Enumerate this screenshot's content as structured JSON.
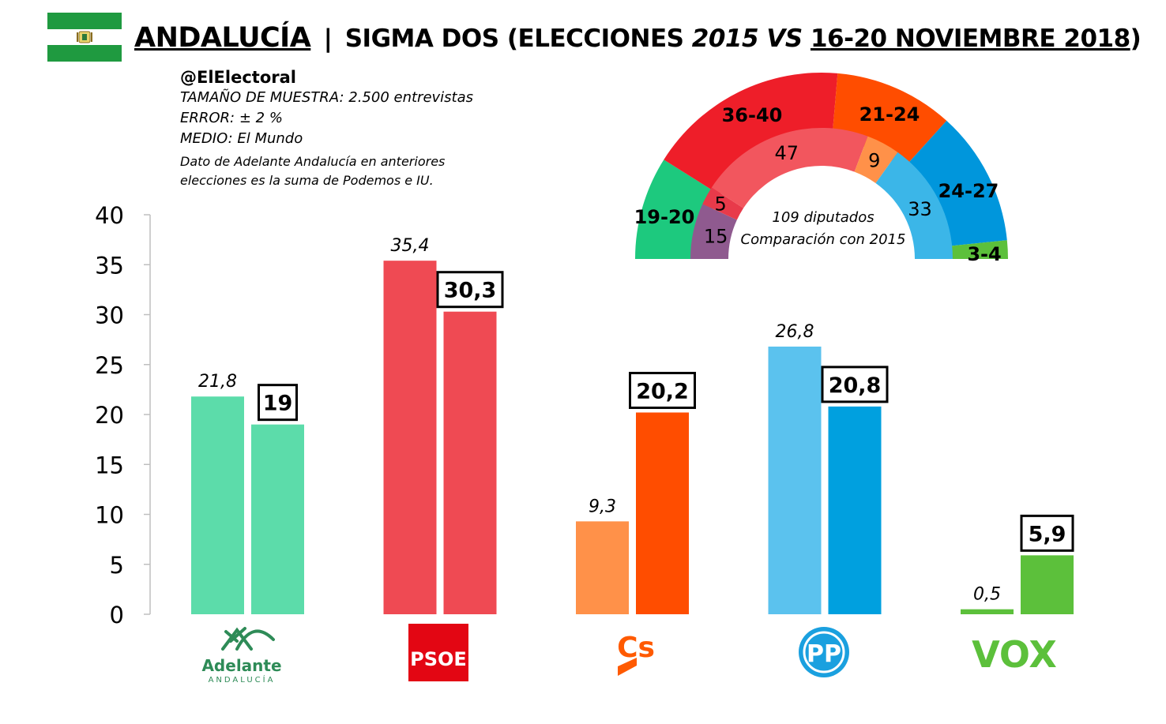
{
  "header": {
    "region": "ANDALUCÍA",
    "separator": "|",
    "pollster_prefix": "SIGMA DOS (ELECCIONES ",
    "year_prev": "2015",
    "vs": " VS ",
    "date_range": "16-20 NOVIEMBRE 2018",
    "close_paren": ")"
  },
  "info": {
    "handle": "@ElElectoral",
    "sample": "TAMAÑO DE MUESTRA: 2.500 entrevistas",
    "error": "ERROR: ± 2 %",
    "media": "MEDIO: El Mundo",
    "note": "Dato de Adelante Andalucía en anteriores elecciones es la suma de Podemos e IU."
  },
  "logos": {
    "adelante_name": "Adelante",
    "adelante_sub": "ANDALUCÍA",
    "psoe": "PSOE",
    "cs": "Cs",
    "pp": "PP",
    "vox": "VOX"
  },
  "colors": {
    "adelante_2015": "#5cdcaa",
    "adelante_2018": "#5cdcaa",
    "psoe_2015": "#ef4a53",
    "psoe_2018": "#ef4a53",
    "cs_2015": "#ff9149",
    "cs_2018": "#ff4d00",
    "pp_2015": "#5bc2ee",
    "pp_2018": "#00a0df",
    "vox_2015": "#5cc03b",
    "vox_2018": "#5cc03b",
    "flag_green": "#1f9a40"
  },
  "chart_data": [
    {
      "type": "bar",
      "categories": [
        "Adelante Andalucía",
        "PSOE",
        "Cs",
        "PP",
        "VOX"
      ],
      "series": [
        {
          "values": [
            21.8,
            35.4,
            9.3,
            26.8,
            0.5
          ],
          "labels": [
            "21,8",
            "35,4",
            "9,3",
            "26,8",
            "0,5"
          ]
        },
        {
          "values": [
            19,
            30.3,
            20.2,
            20.8,
            5.9
          ],
          "labels": [
            "19",
            "30,3",
            "20,2",
            "20,8",
            "5,9"
          ]
        }
      ],
      "ylim": [
        0,
        40
      ],
      "yticks": [
        0,
        5,
        10,
        15,
        20,
        25,
        30,
        35,
        40
      ],
      "grid": false
    },
    {
      "type": "pie",
      "subtype": "parliament-semicircle",
      "total_label": "109 diputados",
      "comparison_label": "Comparación con 2015",
      "outer_ring": [
        {
          "party": "Adelante Andalucía",
          "label": "19-20",
          "value": 19.5,
          "color": "#1dc97e"
        },
        {
          "party": "PSOE",
          "label": "36-40",
          "value": 38,
          "color": "#ee1e29"
        },
        {
          "party": "Cs",
          "label": "21-24",
          "value": 22.5,
          "color": "#ff4d00"
        },
        {
          "party": "PP",
          "label": "24-27",
          "value": 25.5,
          "color": "#0096dc"
        },
        {
          "party": "VOX",
          "label": "3-4",
          "value": 3.5,
          "color": "#5cc03b"
        }
      ],
      "inner_ring": [
        {
          "party": "Podemos",
          "label": "15",
          "value": 15,
          "color": "#8f5a8f"
        },
        {
          "party": "IU",
          "label": "5",
          "value": 5,
          "color": "#e83a4a"
        },
        {
          "party": "PSOE",
          "label": "47",
          "value": 47,
          "color": "#f2565e"
        },
        {
          "party": "Cs",
          "label": "9",
          "value": 9,
          "color": "#ff9149"
        },
        {
          "party": "PP",
          "label": "33",
          "value": 33,
          "color": "#3bb6e8"
        }
      ]
    }
  ]
}
